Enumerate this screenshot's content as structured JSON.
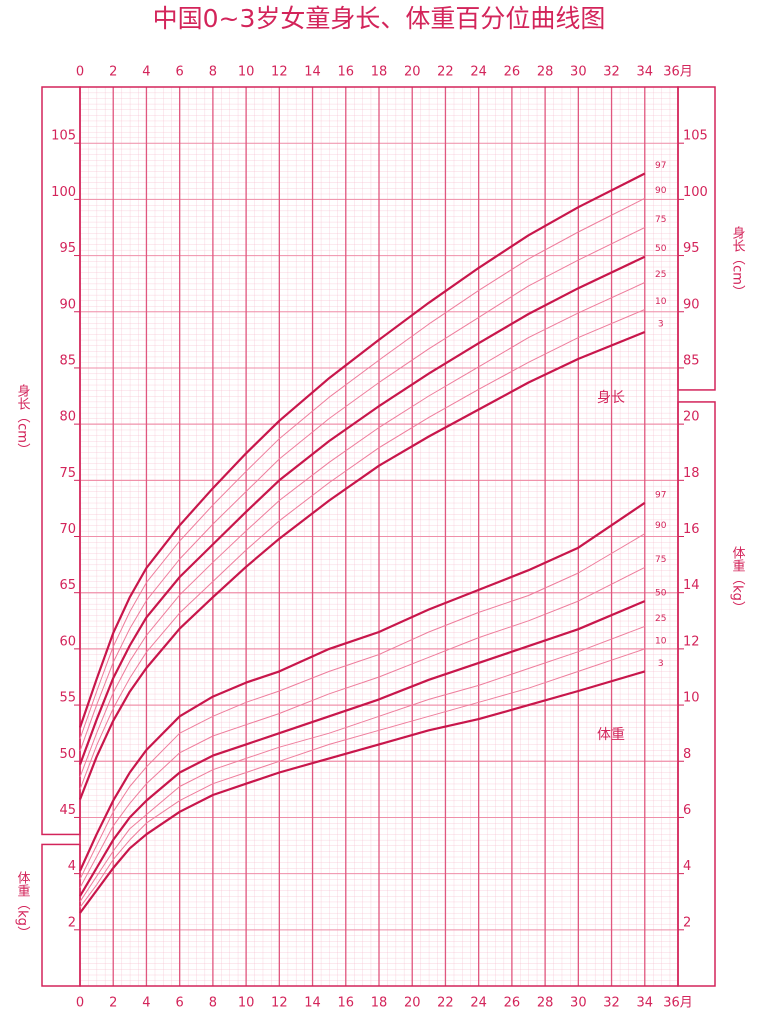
{
  "chart_data": {
    "type": "line",
    "title": "中国0~3岁女童身长、体重百分位曲线图",
    "y_label": "身长（cm）",
    "y2_label": "体重（kg）",
    "annotations": [
      "身长",
      "体重"
    ],
    "grid": true,
    "x": [
      0,
      1,
      2,
      3,
      4,
      6,
      8,
      10,
      12,
      15,
      18,
      21,
      24,
      27,
      30,
      34
    ],
    "xlim": [
      0,
      36
    ],
    "xticks": [
      0,
      2,
      4,
      6,
      8,
      10,
      12,
      14,
      16,
      18,
      20,
      22,
      24,
      26,
      28,
      30,
      32,
      34,
      {
        "value": 36,
        "label": "36月"
      }
    ],
    "ylim": [
      30,
      110
    ],
    "yticks": [
      45,
      50,
      55,
      60,
      65,
      70,
      75,
      80,
      85,
      90,
      95,
      100,
      105
    ],
    "right_yticks": [
      85,
      90,
      95,
      100,
      105
    ],
    "y2lim": [
      0,
      32
    ],
    "y2ticks": [
      2,
      4,
      6,
      8,
      10,
      12,
      14,
      16,
      18,
      20
    ],
    "left_y2ticks": [
      2,
      4
    ],
    "series": [
      {
        "name": "3",
        "color": "#c8164b",
        "line_width": 2.2,
        "values": [
          46.6,
          50.4,
          53.6,
          56.2,
          58.3,
          61.8,
          64.6,
          67.3,
          69.8,
          73.2,
          76.3,
          78.9,
          81.3,
          83.7,
          85.8,
          88.2
        ]
      },
      {
        "name": "10",
        "color": "#ee7d9c",
        "line_width": 1,
        "values": [
          47.5,
          51.4,
          54.7,
          57.4,
          59.7,
          63.2,
          66.0,
          68.8,
          71.4,
          74.8,
          77.9,
          80.6,
          83.1,
          85.5,
          87.7,
          90.2
        ]
      },
      {
        "name": "25",
        "color": "#ee7d9c",
        "line_width": 1,
        "values": [
          48.6,
          52.5,
          56.1,
          58.9,
          61.2,
          64.8,
          67.7,
          70.5,
          73.2,
          76.6,
          79.7,
          82.5,
          85.1,
          87.7,
          89.9,
          92.6
        ]
      },
      {
        "name": "50",
        "color": "#c8164b",
        "line_width": 2.2,
        "values": [
          49.7,
          53.7,
          57.4,
          60.3,
          62.8,
          66.4,
          69.3,
          72.2,
          75.0,
          78.5,
          81.6,
          84.5,
          87.2,
          89.8,
          92.1,
          94.9
        ]
      },
      {
        "name": "75",
        "color": "#ee7d9c",
        "line_width": 1,
        "values": [
          50.9,
          55.0,
          58.8,
          61.8,
          64.3,
          68.0,
          71.1,
          74.0,
          76.9,
          80.5,
          83.7,
          86.7,
          89.5,
          92.3,
          94.6,
          97.5
        ]
      },
      {
        "name": "90",
        "color": "#ee7d9c",
        "line_width": 1,
        "values": [
          52.0,
          56.2,
          60.2,
          63.3,
          65.9,
          69.6,
          72.8,
          75.8,
          78.7,
          82.4,
          85.7,
          88.9,
          91.9,
          94.7,
          97.1,
          100.1
        ]
      },
      {
        "name": "97",
        "color": "#c8164b",
        "line_width": 2.2,
        "values": [
          53.0,
          57.3,
          61.4,
          64.6,
          67.2,
          71.0,
          74.3,
          77.4,
          80.3,
          84.1,
          87.5,
          90.8,
          93.9,
          96.8,
          99.3,
          102.3
        ]
      },
      {
        "name": "3",
        "axis": "y2",
        "color": "#c8164b",
        "line_width": 2.2,
        "values": [
          2.6,
          3.4,
          4.2,
          4.9,
          5.4,
          6.2,
          6.8,
          7.2,
          7.6,
          8.1,
          8.6,
          9.1,
          9.5,
          10.0,
          10.5,
          11.2
        ]
      },
      {
        "name": "10",
        "axis": "y2",
        "color": "#ee7d9c",
        "line_width": 1,
        "values": [
          2.8,
          3.6,
          4.5,
          5.2,
          5.8,
          6.6,
          7.2,
          7.6,
          8.0,
          8.6,
          9.1,
          9.6,
          10.1,
          10.6,
          11.2,
          12.0
        ]
      },
      {
        "name": "25",
        "axis": "y2",
        "color": "#ee7d9c",
        "line_width": 1,
        "values": [
          3.0,
          3.9,
          4.8,
          5.6,
          6.1,
          7.1,
          7.7,
          8.1,
          8.5,
          9.0,
          9.6,
          10.2,
          10.7,
          11.3,
          11.9,
          12.8
        ]
      },
      {
        "name": "50",
        "axis": "y2",
        "color": "#c8164b",
        "line_width": 2.2,
        "values": [
          3.2,
          4.2,
          5.2,
          6.0,
          6.6,
          7.6,
          8.2,
          8.6,
          9.0,
          9.6,
          10.2,
          10.9,
          11.5,
          12.1,
          12.7,
          13.7
        ]
      },
      {
        "name": "75",
        "axis": "y2",
        "color": "#ee7d9c",
        "line_width": 1,
        "values": [
          3.5,
          4.6,
          5.7,
          6.5,
          7.2,
          8.3,
          8.9,
          9.3,
          9.7,
          10.4,
          11.0,
          11.7,
          12.4,
          13.0,
          13.7,
          14.9
        ]
      },
      {
        "name": "90",
        "axis": "y2",
        "color": "#ee7d9c",
        "line_width": 1,
        "values": [
          3.8,
          5.0,
          6.2,
          7.1,
          7.8,
          9.0,
          9.6,
          10.1,
          10.5,
          11.2,
          11.8,
          12.6,
          13.3,
          13.9,
          14.7,
          16.1
        ]
      },
      {
        "name": "97",
        "axis": "y2",
        "color": "#c8164b",
        "line_width": 2.2,
        "values": [
          4.1,
          5.4,
          6.6,
          7.6,
          8.4,
          9.6,
          10.3,
          10.8,
          11.2,
          12.0,
          12.6,
          13.4,
          14.1,
          14.8,
          15.6,
          17.2
        ]
      }
    ]
  }
}
